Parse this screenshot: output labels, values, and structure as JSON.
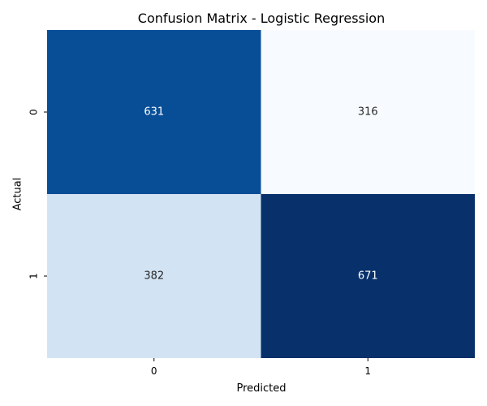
{
  "chart_data": {
    "type": "heatmap",
    "title": "Confusion Matrix - Logistic Regression",
    "xlabel": "Predicted",
    "ylabel": "Actual",
    "x_categories": [
      "0",
      "1"
    ],
    "y_categories": [
      "0",
      "1"
    ],
    "values": [
      [
        631,
        316
      ],
      [
        382,
        671
      ]
    ],
    "colorscale": "Blues",
    "colorbar": false
  }
}
